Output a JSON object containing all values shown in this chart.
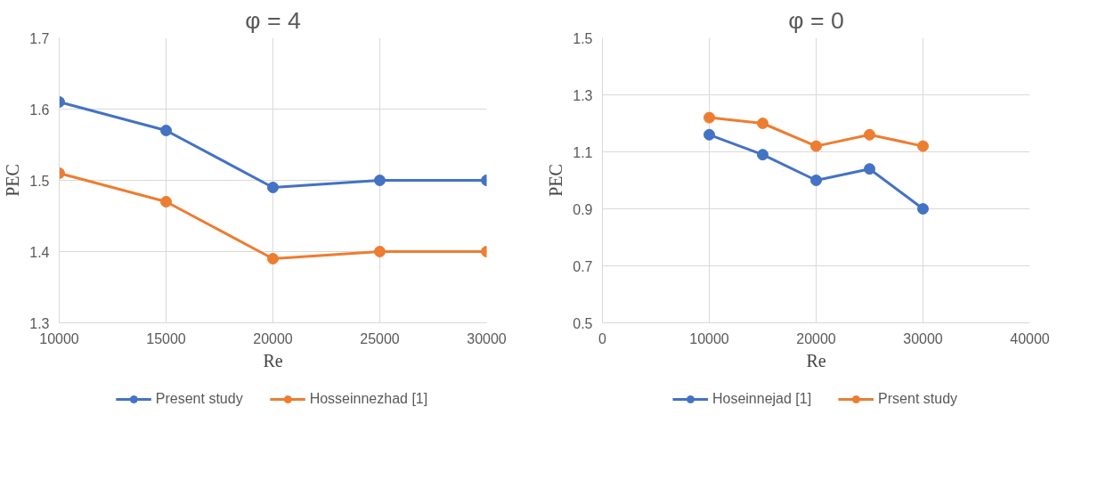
{
  "chart_data": [
    {
      "type": "line",
      "title": "φ = 4",
      "xlabel": "Re",
      "ylabel": "PEC",
      "x": [
        10000,
        15000,
        20000,
        25000,
        30000
      ],
      "xlim": [
        10000,
        30000
      ],
      "xticks": [
        10000,
        15000,
        20000,
        25000,
        30000
      ],
      "ylim": [
        1.3,
        1.7
      ],
      "yticks": [
        1.3,
        1.4,
        1.5,
        1.6,
        1.7
      ],
      "grid": true,
      "legend": "bottom",
      "marker": "circle",
      "series": [
        {
          "name": "Present study",
          "color": "#4472c4",
          "values": [
            1.61,
            1.57,
            1.49,
            1.5,
            1.5
          ]
        },
        {
          "name": "Hosseinnezhad [1]",
          "color": "#ed7d31",
          "values": [
            1.51,
            1.47,
            1.39,
            1.4,
            1.4
          ]
        }
      ]
    },
    {
      "type": "line",
      "title": "φ = 0",
      "xlabel": "Re",
      "ylabel": "PEC",
      "x": [
        10000,
        15000,
        20000,
        25000,
        30000
      ],
      "xlim": [
        0,
        40000
      ],
      "xticks": [
        0,
        10000,
        20000,
        30000,
        40000
      ],
      "ylim": [
        0.5,
        1.5
      ],
      "yticks": [
        0.5,
        0.7,
        0.9,
        1.1,
        1.3,
        1.5
      ],
      "grid": true,
      "legend": "bottom",
      "marker": "circle",
      "series": [
        {
          "name": "Hoseinnejad [1]",
          "color": "#4472c4",
          "values": [
            1.16,
            1.09,
            1.0,
            1.04,
            0.9
          ]
        },
        {
          "name": "Prsent study",
          "color": "#ed7d31",
          "values": [
            1.22,
            1.2,
            1.12,
            1.16,
            1.12
          ]
        }
      ]
    }
  ]
}
